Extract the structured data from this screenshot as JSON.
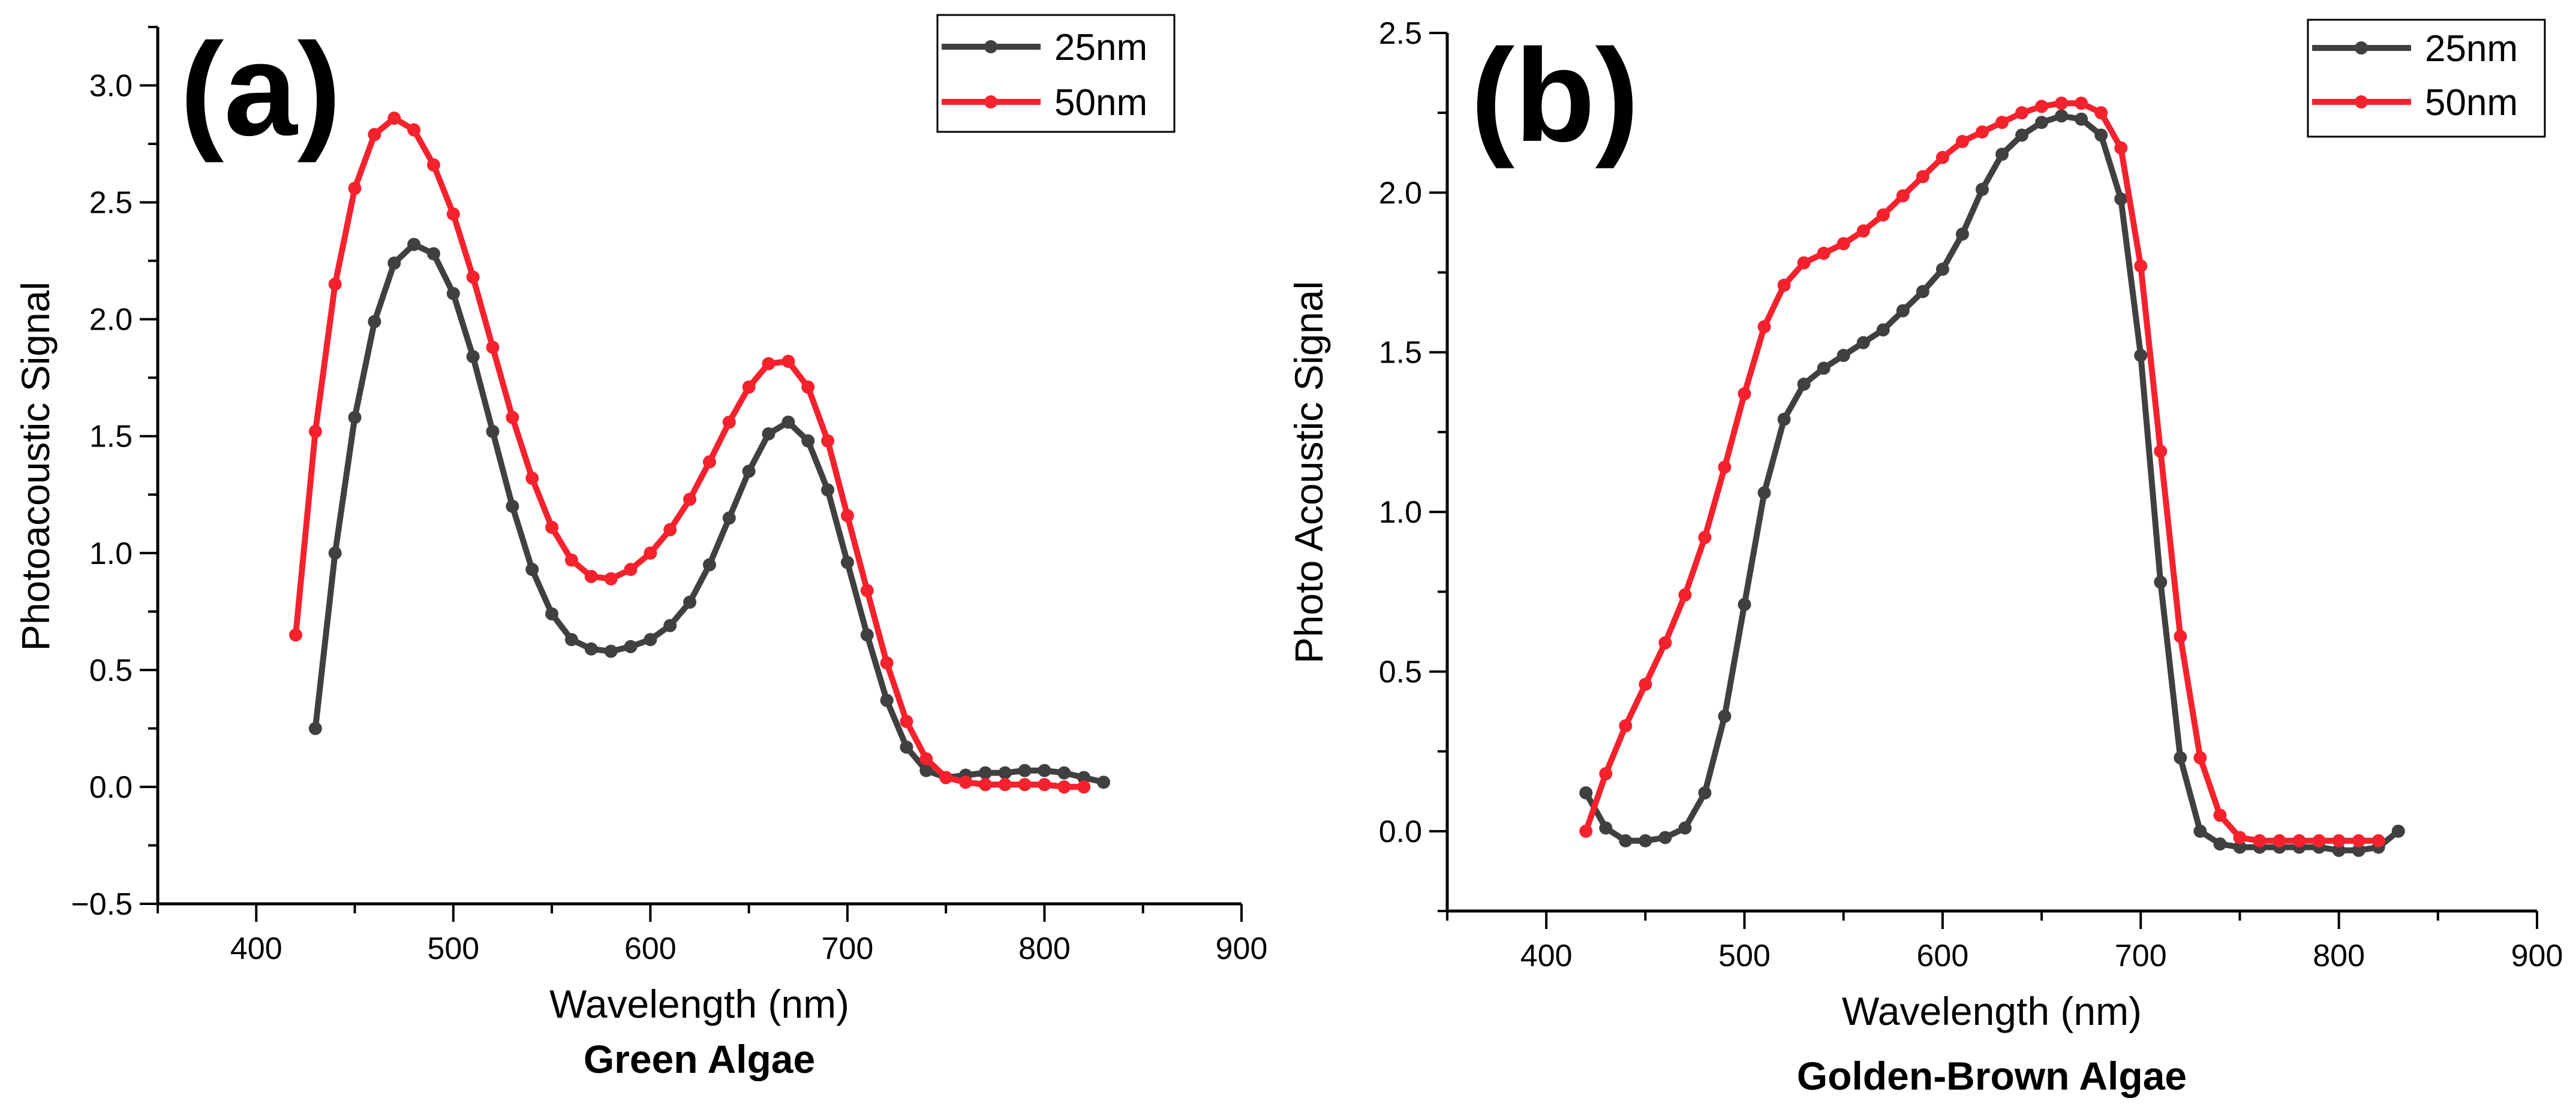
{
  "colors": {
    "series_25nm": "#404040",
    "series_50nm": "#f5222d",
    "axis": "#000000"
  },
  "chart_data": [
    {
      "type": "line",
      "panel_label": "(a)",
      "caption": "Green Algae",
      "xlabel": "Wavelength (nm)",
      "ylabel": "Photoacoustic Signal",
      "xlim": [
        350,
        900
      ],
      "ylim": [
        -0.5,
        3.25
      ],
      "xticks": [
        400,
        500,
        600,
        700,
        800,
        900
      ],
      "yticks": [
        -0.5,
        0.0,
        0.5,
        1.0,
        1.5,
        2.0,
        2.5,
        3.0
      ],
      "ytick_labels": [
        "−0.5",
        "0.0",
        "0.5",
        "1.0",
        "1.5",
        "2.0",
        "2.5",
        "3.0"
      ],
      "grid": false,
      "legend_position": "top-right",
      "series": [
        {
          "name": "25nm",
          "color_key": "series_25nm",
          "x": [
            430,
            440,
            450,
            460,
            470,
            480,
            490,
            500,
            510,
            520,
            530,
            540,
            550,
            560,
            570,
            580,
            590,
            600,
            610,
            620,
            630,
            640,
            650,
            660,
            670,
            680,
            690,
            700,
            710,
            720,
            730,
            740,
            750,
            760,
            770,
            780,
            790,
            800,
            810,
            820,
            830
          ],
          "y": [
            0.25,
            1.0,
            1.58,
            1.99,
            2.24,
            2.32,
            2.28,
            2.11,
            1.84,
            1.52,
            1.2,
            0.93,
            0.74,
            0.63,
            0.59,
            0.58,
            0.6,
            0.63,
            0.69,
            0.79,
            0.95,
            1.15,
            1.35,
            1.51,
            1.56,
            1.48,
            1.27,
            0.96,
            0.65,
            0.37,
            0.17,
            0.07,
            0.04,
            0.05,
            0.06,
            0.06,
            0.07,
            0.07,
            0.06,
            0.04,
            0.02
          ]
        },
        {
          "name": "50nm",
          "color_key": "series_50nm",
          "x": [
            420,
            430,
            440,
            450,
            460,
            470,
            480,
            490,
            500,
            510,
            520,
            530,
            540,
            550,
            560,
            570,
            580,
            590,
            600,
            610,
            620,
            630,
            640,
            650,
            660,
            670,
            680,
            690,
            700,
            710,
            720,
            730,
            740,
            750,
            760,
            770,
            780,
            790,
            800,
            810,
            820
          ],
          "y": [
            0.65,
            1.52,
            2.15,
            2.56,
            2.79,
            2.86,
            2.81,
            2.66,
            2.45,
            2.18,
            1.88,
            1.58,
            1.32,
            1.11,
            0.97,
            0.9,
            0.89,
            0.93,
            1.0,
            1.1,
            1.23,
            1.39,
            1.56,
            1.71,
            1.81,
            1.82,
            1.71,
            1.48,
            1.16,
            0.84,
            0.53,
            0.28,
            0.12,
            0.04,
            0.02,
            0.01,
            0.01,
            0.01,
            0.01,
            0.0,
            0.0
          ]
        }
      ]
    },
    {
      "type": "line",
      "panel_label": "(b)",
      "caption": "Golden-Brown Algae",
      "xlabel": "Wavelength (nm)",
      "ylabel": "Photo Acoustic Signal",
      "xlim": [
        350,
        900
      ],
      "ylim": [
        -0.25,
        2.5
      ],
      "xticks": [
        400,
        500,
        600,
        700,
        800,
        900
      ],
      "yticks": [
        0.0,
        0.5,
        1.0,
        1.5,
        2.0,
        2.5
      ],
      "ytick_labels": [
        "0.0",
        "0.5",
        "1.0",
        "1.5",
        "2.0",
        "2.5"
      ],
      "grid": false,
      "legend_position": "top-right",
      "series": [
        {
          "name": "25nm",
          "color_key": "series_25nm",
          "x": [
            420,
            430,
            440,
            450,
            460,
            470,
            480,
            490,
            500,
            510,
            520,
            530,
            540,
            550,
            560,
            570,
            580,
            590,
            600,
            610,
            620,
            630,
            640,
            650,
            660,
            670,
            680,
            690,
            700,
            710,
            720,
            730,
            740,
            750,
            760,
            770,
            780,
            790,
            800,
            810,
            820,
            830
          ],
          "y": [
            0.12,
            0.01,
            -0.03,
            -0.03,
            -0.02,
            0.01,
            0.12,
            0.36,
            0.71,
            1.06,
            1.29,
            1.4,
            1.45,
            1.49,
            1.53,
            1.57,
            1.63,
            1.69,
            1.76,
            1.87,
            2.01,
            2.12,
            2.18,
            2.22,
            2.24,
            2.23,
            2.18,
            1.98,
            1.49,
            0.78,
            0.23,
            0.0,
            -0.04,
            -0.05,
            -0.05,
            -0.05,
            -0.05,
            -0.05,
            -0.06,
            -0.06,
            -0.05,
            0.0
          ]
        },
        {
          "name": "50nm",
          "color_key": "series_50nm",
          "x": [
            420,
            430,
            440,
            450,
            460,
            470,
            480,
            490,
            500,
            510,
            520,
            530,
            540,
            550,
            560,
            570,
            580,
            590,
            600,
            610,
            620,
            630,
            640,
            650,
            660,
            670,
            680,
            690,
            700,
            710,
            720,
            730,
            740,
            750,
            760,
            770,
            780,
            790,
            800,
            810,
            820
          ],
          "y": [
            0.0,
            0.18,
            0.33,
            0.46,
            0.59,
            0.74,
            0.92,
            1.14,
            1.37,
            1.58,
            1.71,
            1.78,
            1.81,
            1.84,
            1.88,
            1.93,
            1.99,
            2.05,
            2.11,
            2.16,
            2.19,
            2.22,
            2.25,
            2.27,
            2.28,
            2.28,
            2.25,
            2.14,
            1.77,
            1.19,
            0.61,
            0.23,
            0.05,
            -0.02,
            -0.03,
            -0.03,
            -0.03,
            -0.03,
            -0.03,
            -0.03,
            -0.03
          ]
        }
      ]
    }
  ]
}
